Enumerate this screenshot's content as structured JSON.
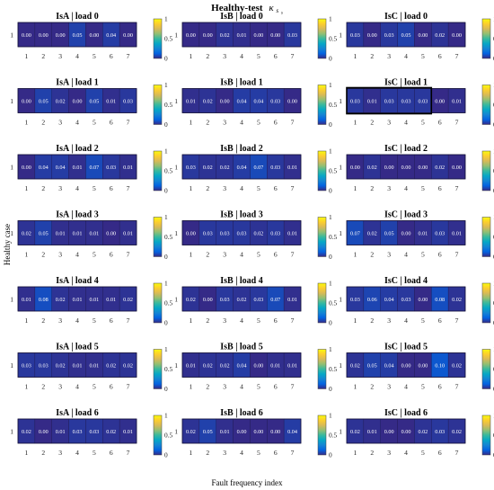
{
  "chart_data": {
    "type": "heatmap",
    "title": "Healthy-test",
    "title_symbol": "κ",
    "title_symbol_sub": "s",
    "title_symbol_subsub": "s",
    "xlabel": "Fault frequency index",
    "ylabel": "Healthy case",
    "x_ticks": [
      "1",
      "2",
      "3",
      "4",
      "5",
      "6",
      "7"
    ],
    "y_tick": "1",
    "colorbar": {
      "range": [
        0,
        1
      ],
      "ticks": [
        "0",
        "0.5",
        "1"
      ],
      "colormap": "parula"
    },
    "highlight": {
      "panel": "IsC | load 1",
      "cells": [
        1,
        5
      ]
    },
    "panels": [
      {
        "title": "IsA | load 0",
        "values": [
          0.0,
          0.0,
          0.0,
          0.05,
          0.0,
          0.04,
          0.0
        ]
      },
      {
        "title": "IsB | load 0",
        "values": [
          0.0,
          0.0,
          0.02,
          0.01,
          0.0,
          0.0,
          0.03
        ]
      },
      {
        "title": "IsC | load 0",
        "values": [
          0.03,
          0.0,
          0.03,
          0.05,
          0.0,
          0.02,
          0.0
        ]
      },
      {
        "title": "IsA | load 1",
        "values": [
          0.0,
          0.05,
          0.02,
          0.0,
          0.05,
          0.01,
          0.03
        ]
      },
      {
        "title": "IsB | load 1",
        "values": [
          0.01,
          0.02,
          0.0,
          0.04,
          0.04,
          0.03,
          0.0
        ]
      },
      {
        "title": "IsC | load 1",
        "values": [
          0.03,
          0.01,
          0.03,
          0.03,
          0.03,
          0.0,
          0.01
        ]
      },
      {
        "title": "IsA | load 2",
        "values": [
          0.0,
          0.04,
          0.04,
          0.01,
          0.07,
          0.03,
          0.01
        ]
      },
      {
        "title": "IsB | load 2",
        "values": [
          0.03,
          0.02,
          0.02,
          0.04,
          0.07,
          0.03,
          0.01
        ]
      },
      {
        "title": "IsC | load 2",
        "values": [
          0.0,
          0.02,
          0.0,
          0.0,
          0.0,
          0.02,
          0.0
        ]
      },
      {
        "title": "IsA | load 3",
        "values": [
          0.02,
          0.05,
          0.01,
          0.01,
          0.01,
          0.0,
          0.01
        ]
      },
      {
        "title": "IsB | load 3",
        "values": [
          0.0,
          0.03,
          0.03,
          0.03,
          0.02,
          0.03,
          0.01
        ]
      },
      {
        "title": "IsC | load 3",
        "values": [
          0.07,
          0.02,
          0.05,
          0.0,
          0.01,
          0.03,
          0.01
        ]
      },
      {
        "title": "IsA | load 4",
        "values": [
          0.01,
          0.08,
          0.02,
          0.01,
          0.01,
          0.01,
          0.02
        ]
      },
      {
        "title": "IsB | load 4",
        "values": [
          0.02,
          0.0,
          0.03,
          0.02,
          0.03,
          0.07,
          0.01
        ]
      },
      {
        "title": "IsC | load 4",
        "values": [
          0.03,
          0.06,
          0.04,
          0.03,
          0.0,
          0.08,
          0.02
        ]
      },
      {
        "title": "IsA | load 5",
        "values": [
          0.03,
          0.03,
          0.02,
          0.01,
          0.01,
          0.02,
          0.02
        ]
      },
      {
        "title": "IsB | load 5",
        "values": [
          0.01,
          0.02,
          0.02,
          0.04,
          0.0,
          0.01,
          0.01
        ]
      },
      {
        "title": "IsC | load 5",
        "values": [
          0.02,
          0.05,
          0.04,
          0.0,
          0.0,
          0.1,
          0.02
        ]
      },
      {
        "title": "IsA | load 6",
        "values": [
          0.02,
          0.0,
          0.01,
          0.03,
          0.03,
          0.02,
          0.01
        ]
      },
      {
        "title": "IsB | load 6",
        "values": [
          0.02,
          0.05,
          0.01,
          0.0,
          0.0,
          0.0,
          0.04
        ]
      },
      {
        "title": "IsC | load 6",
        "values": [
          0.02,
          0.01,
          0.0,
          0.0,
          0.02,
          0.03,
          0.02
        ]
      }
    ]
  }
}
